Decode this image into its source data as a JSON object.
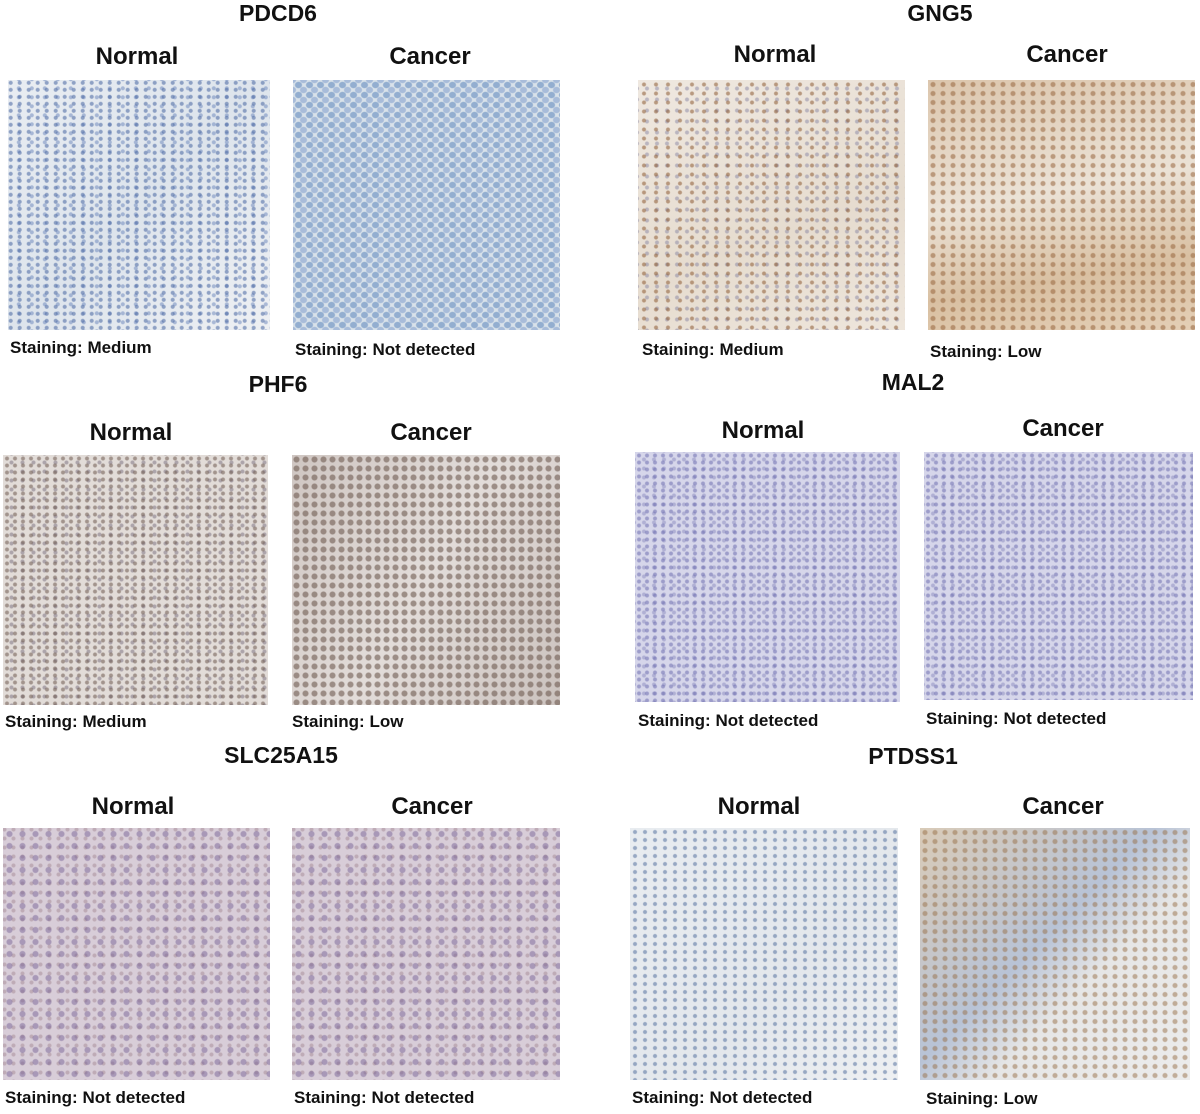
{
  "panels": [
    {
      "gene": "PDCD6",
      "normal_label": "Normal",
      "cancer_label": "Cancer",
      "normal_staining": "Staining: Medium",
      "cancer_staining": "Staining: Not detected"
    },
    {
      "gene": "GNG5",
      "normal_label": "Normal",
      "cancer_label": "Cancer",
      "normal_staining": "Staining: Medium",
      "cancer_staining": "Staining: Low"
    },
    {
      "gene": "PHF6",
      "normal_label": "Normal",
      "cancer_label": "Cancer",
      "normal_staining": "Staining: Medium",
      "cancer_staining": "Staining: Low"
    },
    {
      "gene": "MAL2",
      "normal_label": "Normal",
      "cancer_label": "Cancer",
      "normal_staining": "Staining: Not detected",
      "cancer_staining": "Staining: Not detected"
    },
    {
      "gene": "SLC25A15",
      "normal_label": "Normal",
      "cancer_label": "Cancer",
      "normal_staining": "Staining: Not detected",
      "cancer_staining": "Staining: Not detected"
    },
    {
      "gene": "PTDSS1",
      "normal_label": "Normal",
      "cancer_label": "Cancer",
      "normal_staining": "Staining: Not detected",
      "cancer_staining": "Staining: Low"
    }
  ]
}
